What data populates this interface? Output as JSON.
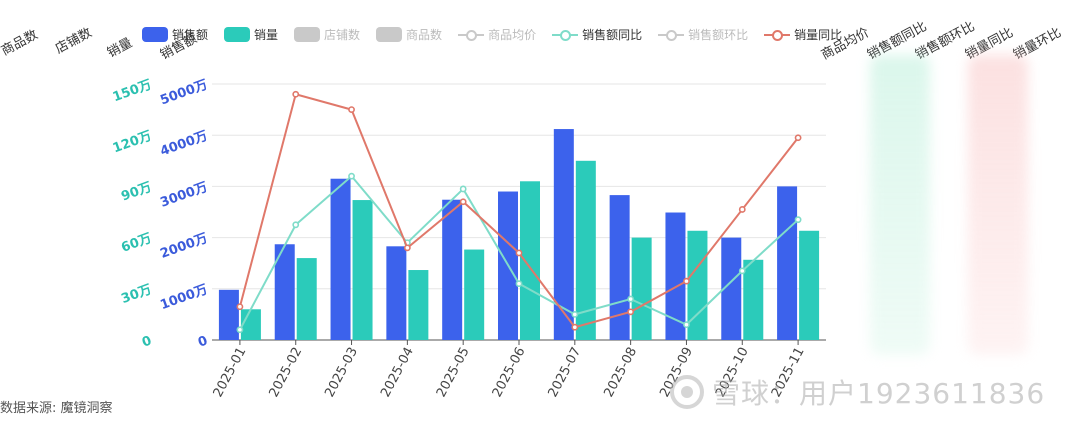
{
  "headers": [
    "商品数",
    "店铺数",
    "销量",
    "销售额",
    "商品均价",
    "销售额同比",
    "销售额环比",
    "销量同比",
    "销量环比"
  ],
  "source": "数据来源: 魔镜洞察",
  "watermark": "雪球：用户1923611836",
  "colors": {
    "sales": "#3c62ec",
    "volume": "#2bcbba",
    "sales_yoy": "#7fdcc9",
    "volume_yoy": "#e0786a",
    "disabled": "#c9c9c9",
    "axis_left": "#3b5bdb",
    "axis_right": "#2bc0b0"
  },
  "legend": [
    {
      "label": "销售额",
      "kind": "bar",
      "color": "#3c62ec",
      "active": true
    },
    {
      "label": "销量",
      "kind": "bar",
      "color": "#2bcbba",
      "active": true
    },
    {
      "label": "店铺数",
      "kind": "bar",
      "color": "#c9c9c9",
      "active": false
    },
    {
      "label": "商品数",
      "kind": "bar",
      "color": "#c9c9c9",
      "active": false
    },
    {
      "label": "商品均价",
      "kind": "line",
      "color": "#c9c9c9",
      "active": false
    },
    {
      "label": "销售额同比",
      "kind": "line",
      "color": "#7fdcc9",
      "active": true
    },
    {
      "label": "销售额环比",
      "kind": "line",
      "color": "#c9c9c9",
      "active": false
    },
    {
      "label": "销量同比",
      "kind": "line",
      "color": "#e0786a",
      "active": true
    }
  ],
  "chart_data": {
    "type": "bar",
    "categories": [
      "2025-01",
      "2025-02",
      "2025-03",
      "2025-04",
      "2025-05",
      "2025-06",
      "2025-07",
      "2025-08",
      "2025-09",
      "2025-10",
      "2025-11"
    ],
    "y_left": {
      "ticks": [
        "0",
        "1000万",
        "2000万",
        "3000万",
        "4000万",
        "5000万"
      ],
      "max": 5000,
      "unit": "万"
    },
    "y_right": {
      "ticks": [
        "0",
        "30万",
        "60万",
        "90万",
        "120万",
        "150万"
      ],
      "max": 150,
      "unit": "万"
    },
    "series": [
      {
        "name": "销售额",
        "type": "bar",
        "axis": "left",
        "values": [
          980,
          1870,
          3150,
          1830,
          2740,
          2900,
          4120,
          2830,
          2490,
          2000,
          3000
        ]
      },
      {
        "name": "销量",
        "type": "bar",
        "axis": "right",
        "values": [
          18,
          48,
          82,
          41,
          53,
          93,
          105,
          60,
          64,
          47,
          64
        ]
      },
      {
        "name": "销售额同比",
        "type": "line",
        "values": [
          0.04,
          0.45,
          0.64,
          0.38,
          0.59,
          0.22,
          0.1,
          0.16,
          0.06,
          0.27,
          0.47
        ]
      },
      {
        "name": "销量同比",
        "type": "line",
        "values": [
          0.13,
          0.96,
          0.9,
          0.36,
          0.54,
          0.34,
          0.05,
          0.11,
          0.23,
          0.51,
          0.79
        ]
      }
    ],
    "grid": true
  }
}
